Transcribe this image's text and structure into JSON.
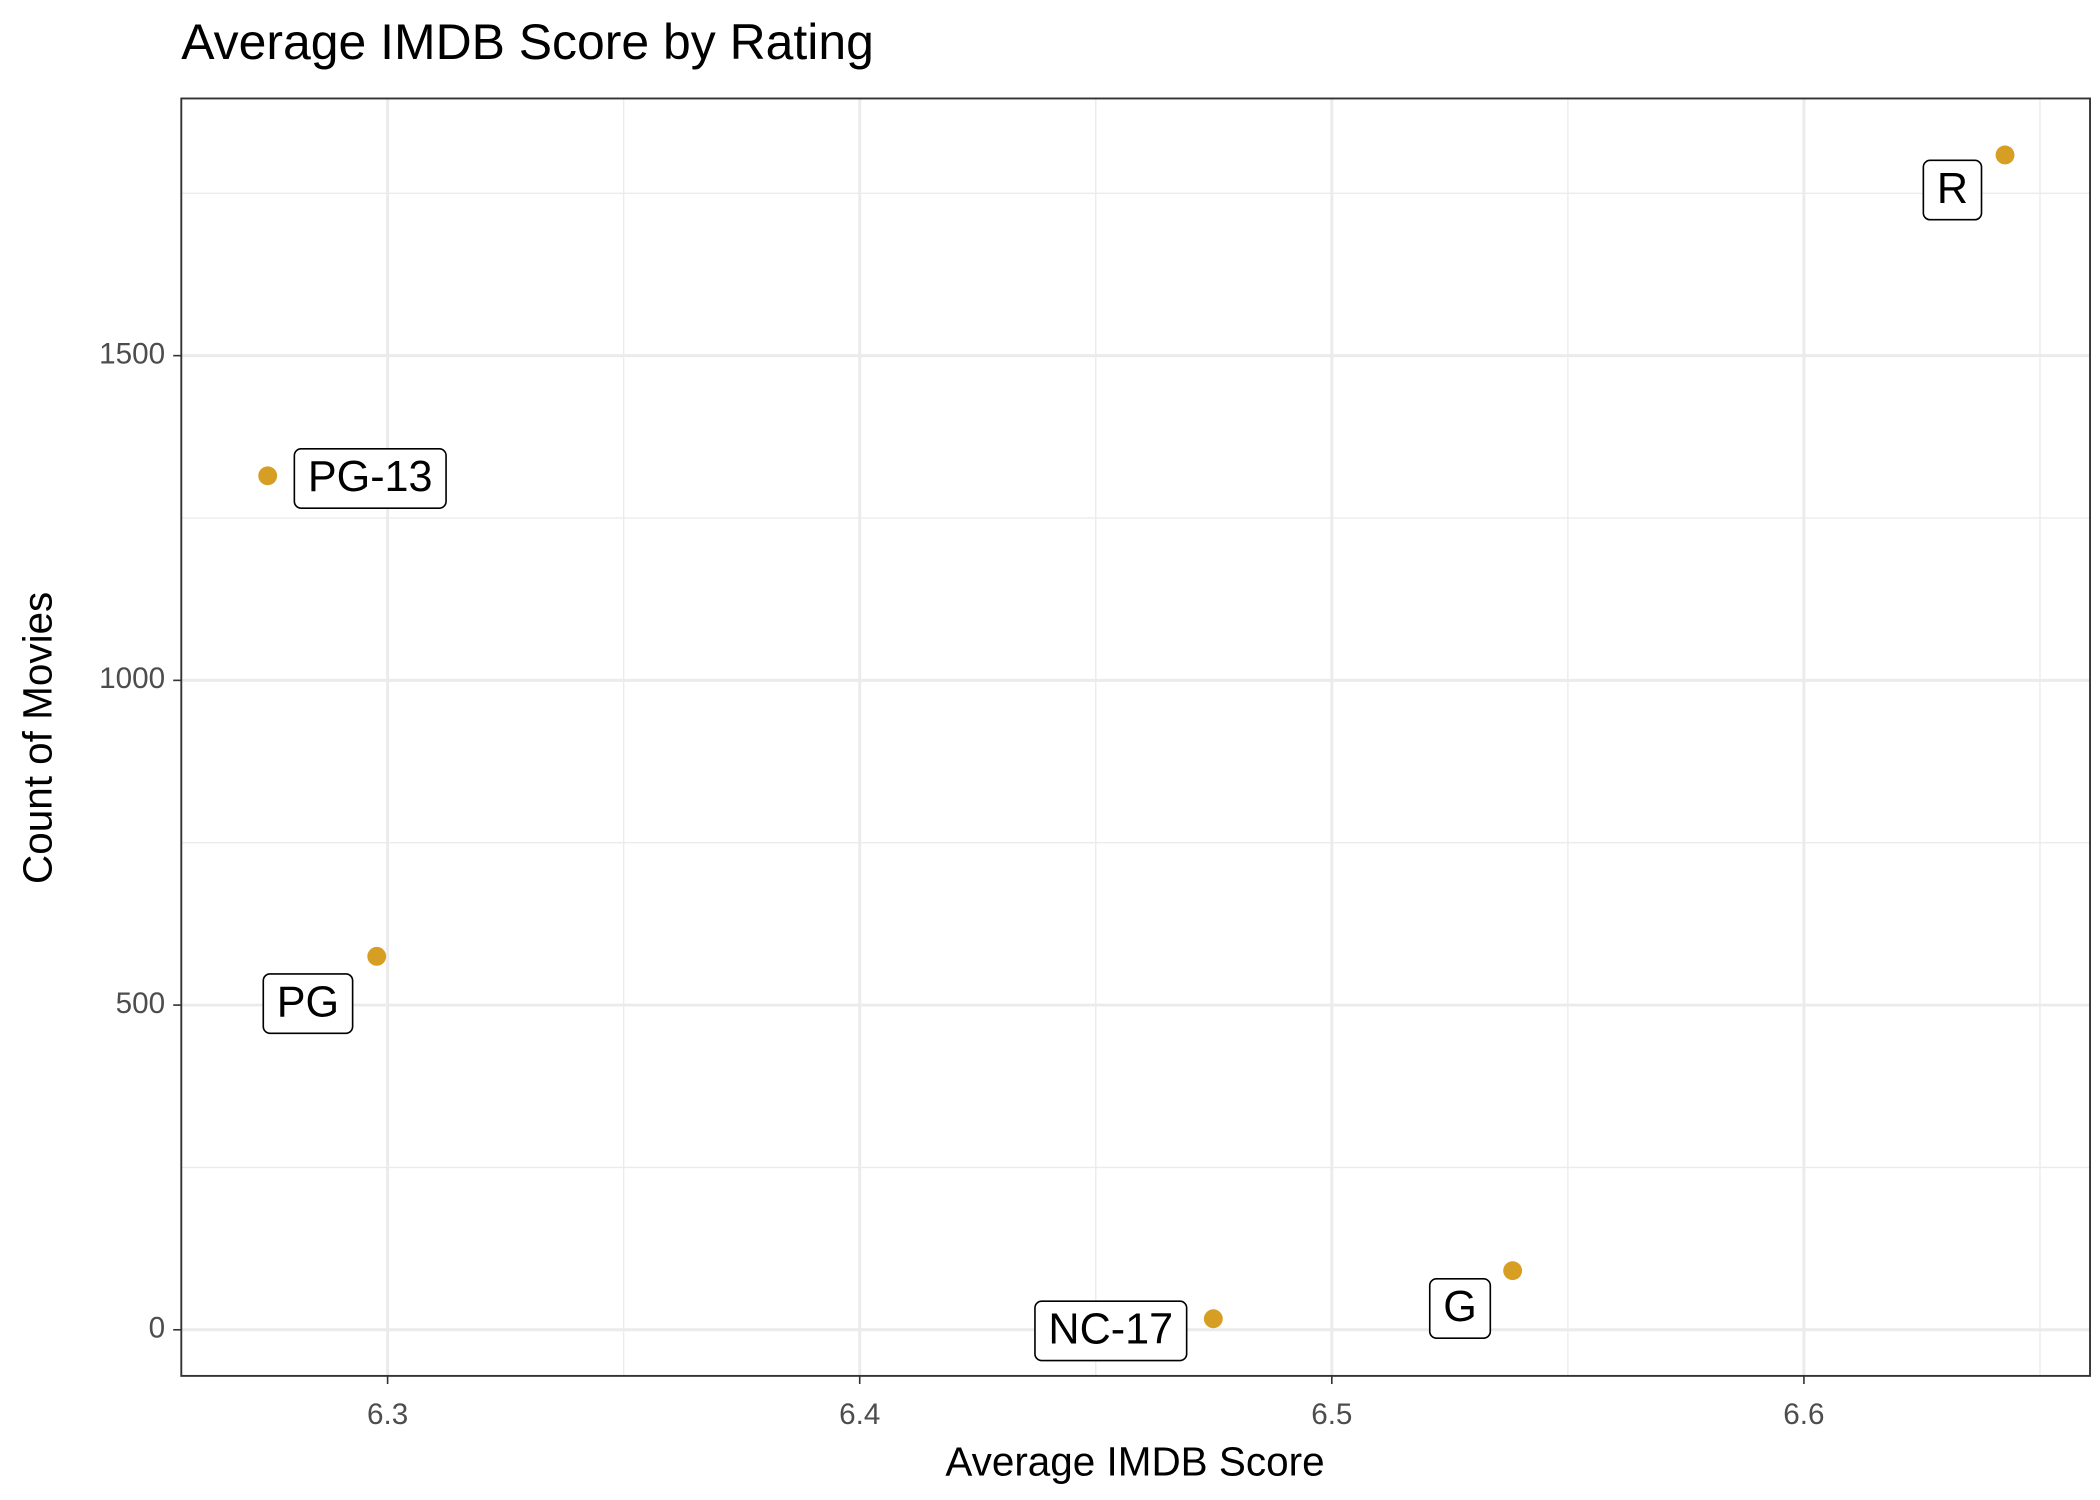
{
  "chart_data": {
    "type": "scatter",
    "title": "Average IMDB Score by Rating",
    "x_label": "Average IMDB Score",
    "y_label": "Count of Movies",
    "categories": [
      "PG-13",
      "PG",
      "NC-17",
      "G",
      "R"
    ],
    "x": [
      6.2746,
      6.2977,
      6.4749,
      6.5383,
      6.6426
    ],
    "values": [
      1315,
      575,
      17,
      91,
      1809
    ],
    "color": "#d69f23",
    "xlim": [
      6.2563,
      6.6606
    ],
    "xticks": [
      6.3,
      6.4,
      6.5,
      6.6
    ],
    "ylim": [
      -71,
      1896
    ],
    "yticks": [
      0,
      500,
      1000,
      1500
    ],
    "grid": true
  }
}
